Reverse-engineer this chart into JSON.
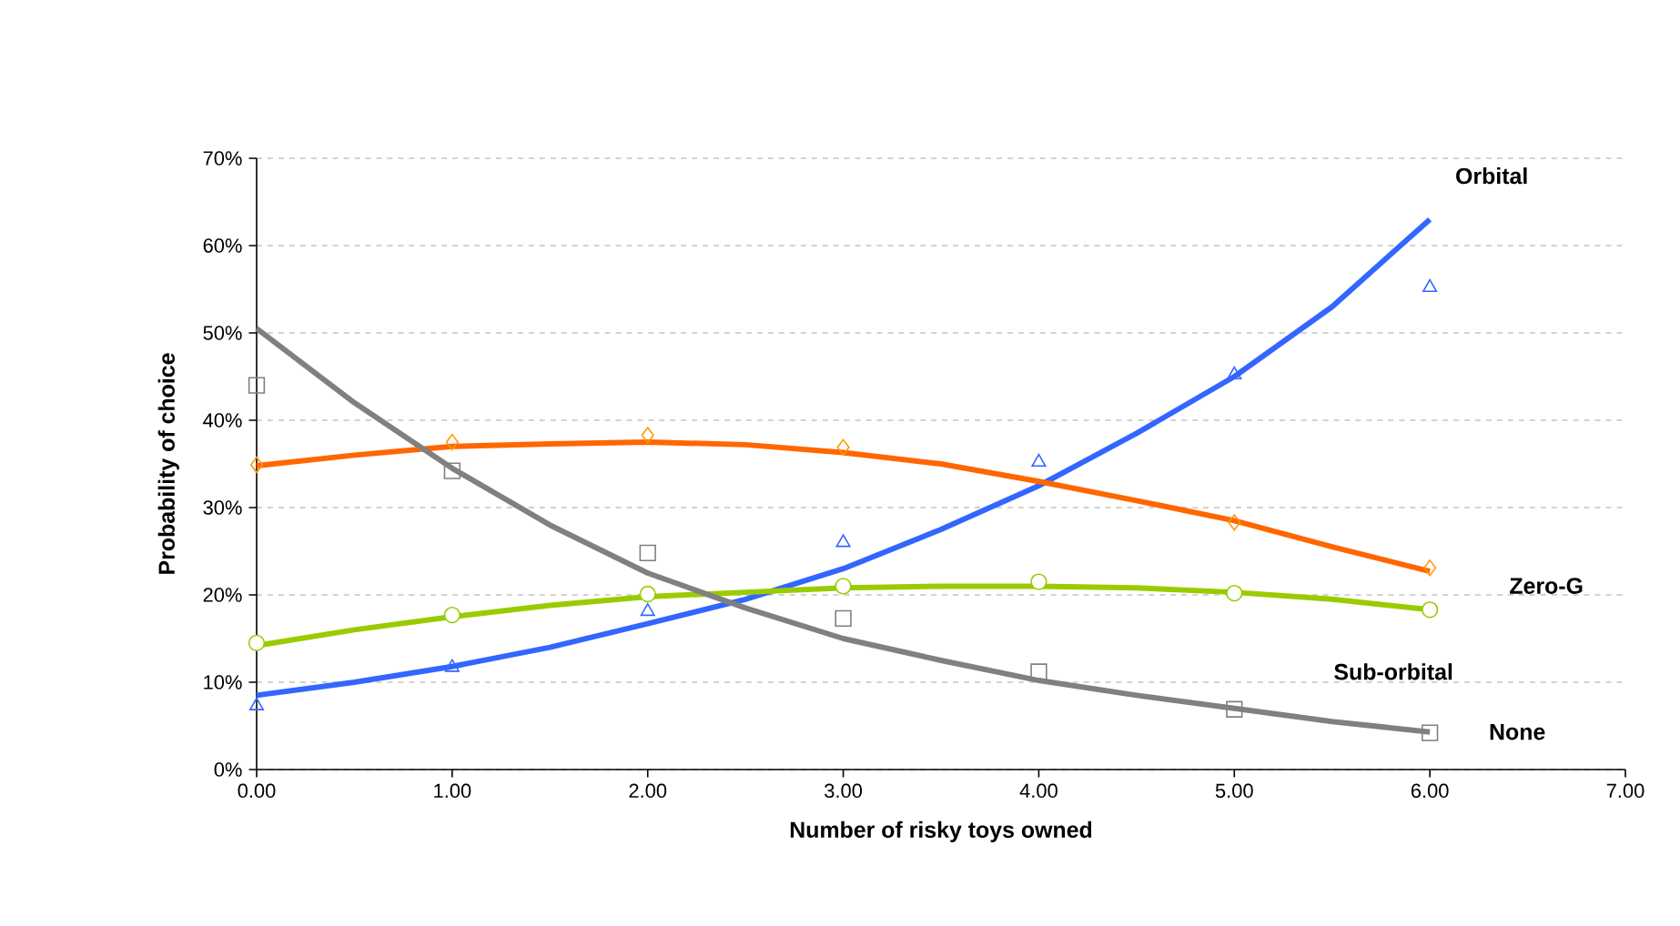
{
  "chart_data": {
    "type": "line",
    "xlabel": "Number of risky toys owned",
    "ylabel": "Probability of choice",
    "xlim": [
      0,
      7
    ],
    "ylim": [
      0,
      70
    ],
    "xticks": [
      {
        "value": 0,
        "label": "0.00"
      },
      {
        "value": 1,
        "label": "1.00"
      },
      {
        "value": 2,
        "label": "2.00"
      },
      {
        "value": 3,
        "label": "3.00"
      },
      {
        "value": 4,
        "label": "4.00"
      },
      {
        "value": 5,
        "label": "5.00"
      },
      {
        "value": 6,
        "label": "6.00"
      },
      {
        "value": 7,
        "label": "7.00"
      }
    ],
    "yticks": [
      {
        "value": 0,
        "label": "0%"
      },
      {
        "value": 10,
        "label": "10%"
      },
      {
        "value": 20,
        "label": "20%"
      },
      {
        "value": 30,
        "label": "30%"
      },
      {
        "value": 40,
        "label": "40%"
      },
      {
        "value": 50,
        "label": "50%"
      },
      {
        "value": 60,
        "label": "60%"
      },
      {
        "value": 70,
        "label": "70%"
      }
    ],
    "grid": "y",
    "series": [
      {
        "color": "#3366ff",
        "x": [
          0,
          0.5,
          1,
          1.5,
          2,
          2.5,
          3,
          3.5,
          4,
          4.5,
          5,
          5.5,
          6
        ],
        "values": [
          8.5,
          10,
          11.8,
          14,
          16.7,
          19.5,
          23,
          27.5,
          32.5,
          38.5,
          45,
          53,
          63
        ]
      },
      {
        "color": "#ff6600",
        "x": [
          0,
          0.5,
          1,
          1.5,
          2,
          2.5,
          3,
          3.5,
          4,
          4.5,
          5,
          5.5,
          6
        ],
        "values": [
          34.8,
          36,
          37,
          37.3,
          37.5,
          37.2,
          36.3,
          35,
          33,
          30.8,
          28.5,
          25.5,
          22.7
        ]
      },
      {
        "color": "#99cc00",
        "x": [
          0,
          0.5,
          1,
          1.5,
          2,
          2.5,
          3,
          3.5,
          4,
          4.5,
          5,
          5.5,
          6
        ],
        "values": [
          14.2,
          16,
          17.5,
          18.8,
          19.8,
          20.3,
          20.8,
          21,
          21,
          20.8,
          20.3,
          19.5,
          18.3
        ]
      },
      {
        "color": "#808080",
        "x": [
          0,
          0.5,
          1,
          1.5,
          2,
          2.5,
          3,
          3.5,
          4,
          4.5,
          5,
          5.5,
          6
        ],
        "values": [
          50.5,
          42,
          34.5,
          28,
          22.5,
          18.5,
          15,
          12.5,
          10.2,
          8.5,
          7,
          5.5,
          4.3
        ]
      },
      {
        "type": "scatter",
        "marker": "triangle",
        "color": "#3366ff",
        "x": [
          0,
          1,
          2,
          3,
          4,
          5,
          6
        ],
        "values": [
          7.3,
          11.7,
          18.1,
          26.0,
          35.2,
          45.2,
          55.2
        ]
      },
      {
        "type": "scatter",
        "marker": "diamond",
        "color": "#ff9900",
        "x": [
          0,
          1,
          2,
          3,
          4,
          5,
          6
        ],
        "values": [
          34.9,
          37.5,
          38.3,
          36.9,
          null,
          28.3,
          23.1
        ]
      },
      {
        "type": "scatter",
        "marker": "circle",
        "color": "#99cc00",
        "x": [
          0,
          1,
          2,
          3,
          4,
          5,
          6
        ],
        "values": [
          14.5,
          17.7,
          20.1,
          21.0,
          21.5,
          20.2,
          18.3
        ]
      },
      {
        "type": "scatter",
        "marker": "square",
        "color": "#808080",
        "x": [
          0,
          1,
          2,
          3,
          4,
          5,
          6
        ],
        "values": [
          44.0,
          34.2,
          24.8,
          17.3,
          11.2,
          6.9,
          4.2
        ]
      }
    ],
    "annotations": [
      "Orbital",
      "Zero-G",
      "Sub-orbital",
      "None"
    ]
  }
}
